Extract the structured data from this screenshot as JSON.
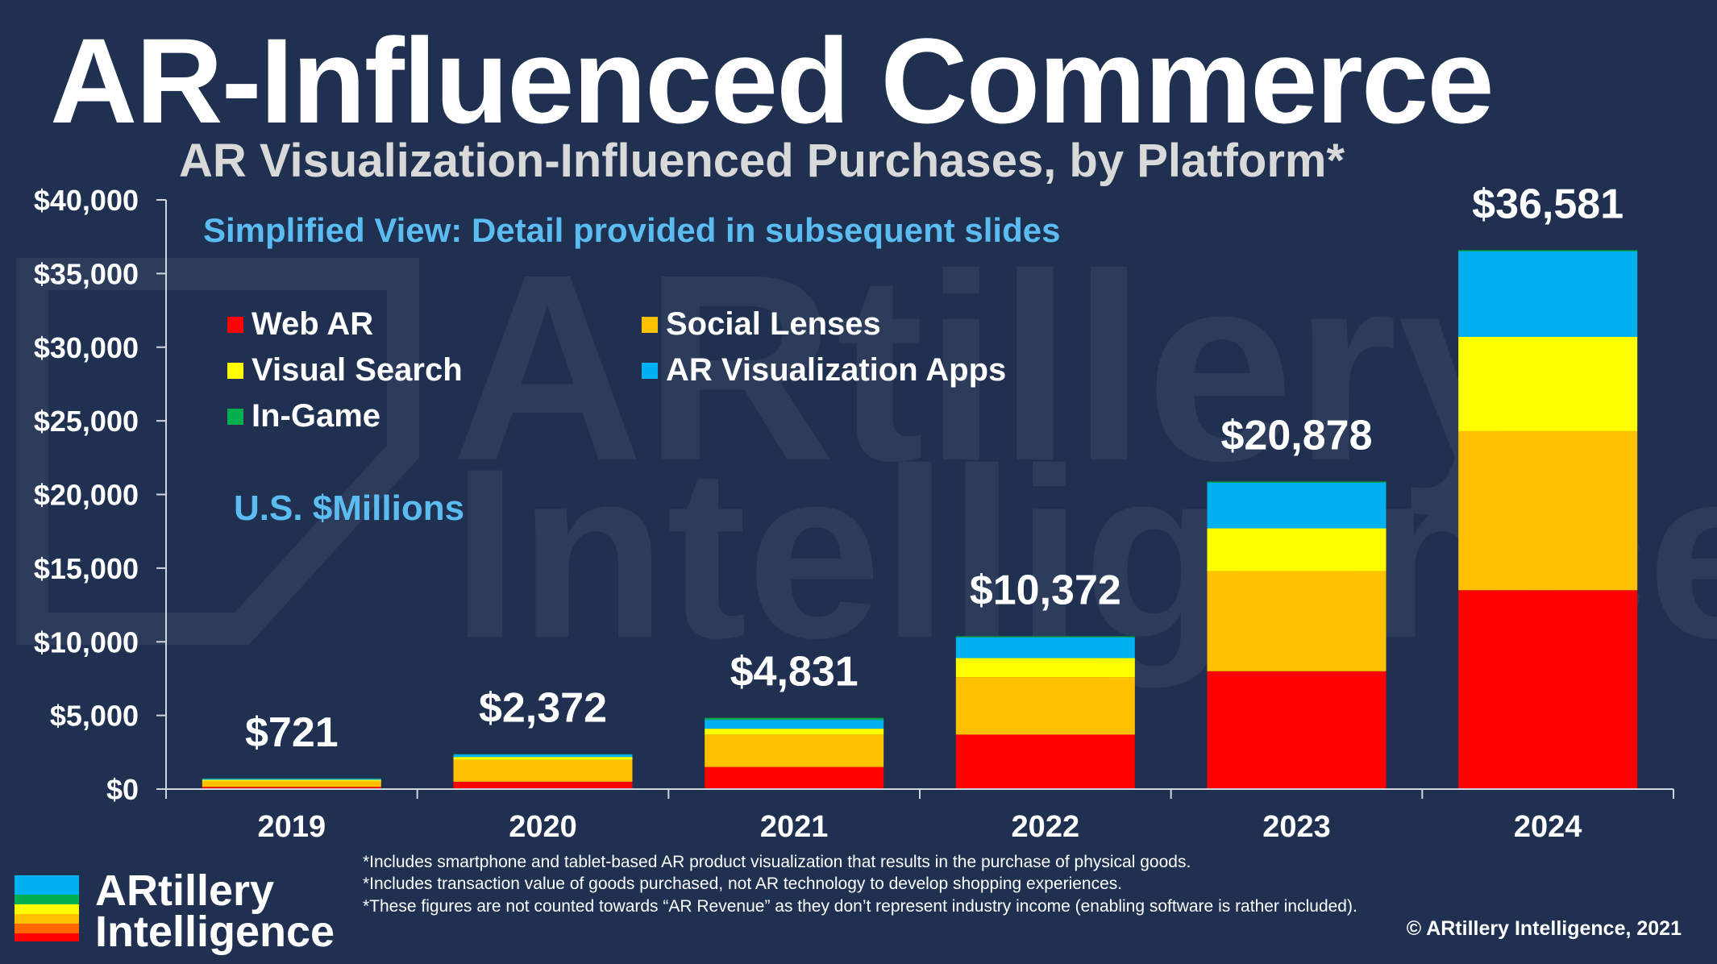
{
  "title": "AR-Influenced Commerce",
  "subtitle": "AR Visualization-Influenced Purchases, by Platform*",
  "notes": {
    "simplified": "Simplified View: Detail provided in subsequent slides",
    "units": "U.S. $Millions"
  },
  "legend": [
    {
      "label": "Web AR",
      "color": "#ff0000"
    },
    {
      "label": "Social Lenses",
      "color": "#ffc000"
    },
    {
      "label": "Visual Search",
      "color": "#ffff00"
    },
    {
      "label": "AR Visualization Apps",
      "color": "#00b0f0"
    },
    {
      "label": "In-Game",
      "color": "#00b050"
    }
  ],
  "chart_data": {
    "type": "bar",
    "stacked": true,
    "categories": [
      "2019",
      "2020",
      "2021",
      "2022",
      "2023",
      "2024"
    ],
    "series": [
      {
        "name": "Web AR",
        "color": "#ff0000",
        "values": [
          150,
          500,
          1500,
          3700,
          8000,
          13500
        ]
      },
      {
        "name": "Social Lenses",
        "color": "#ffc000",
        "values": [
          400,
          1500,
          2200,
          3900,
          6800,
          10800
        ]
      },
      {
        "name": "Visual Search",
        "color": "#ffff00",
        "values": [
          80,
          180,
          400,
          1300,
          2900,
          6400
        ]
      },
      {
        "name": "AR Visualization Apps",
        "color": "#00b0f0",
        "values": [
          70,
          170,
          600,
          1400,
          3100,
          5800
        ]
      },
      {
        "name": "In-Game",
        "color": "#00b050",
        "values": [
          21,
          22,
          131,
          72,
          78,
          81
        ]
      }
    ],
    "totals": [
      721,
      2372,
      4831,
      10372,
      20878,
      36581
    ],
    "total_labels": [
      "$721",
      "$2,372",
      "$4,831",
      "$10,372",
      "$20,878",
      "$36,581"
    ],
    "yticks": [
      0,
      5000,
      10000,
      15000,
      20000,
      25000,
      30000,
      35000,
      40000
    ],
    "ytick_labels": [
      "$0",
      "$5,000",
      "$10,000",
      "$15,000",
      "$20,000",
      "$25,000",
      "$30,000",
      "$35,000",
      "$40,000"
    ],
    "ylim": [
      0,
      40000
    ],
    "xlabel": "",
    "ylabel": "",
    "legend_position": "top-left",
    "grid": false
  },
  "footnotes": [
    "*Includes smartphone and tablet-based AR product visualization that results in the purchase of physical goods.",
    "*Includes transaction value of goods purchased, not AR technology to develop shopping experiences.",
    "*These figures are not counted towards “AR Revenue” as they don’t represent industry income (enabling software is rather included)."
  ],
  "copyright": "© ARtillery Intelligence, 2021",
  "logo": {
    "line1": "ARtillery",
    "line2": "Intelligence"
  },
  "watermark": {
    "line1": "ARtillery",
    "line2": "Intelligence"
  }
}
